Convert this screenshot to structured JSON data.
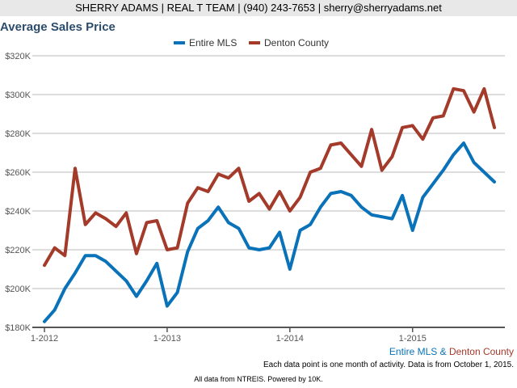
{
  "header": {
    "contact": "SHERRY ADAMS | REAL T TEAM | (940) 243-7653 | sherry@sherryadams.net"
  },
  "footer": {
    "legend_a": "Entire MLS",
    "legend_amp": " & ",
    "legend_b": "Denton County",
    "note": "Each data point is one month of activity. Data is from October 1, 2015.",
    "source": "All data from NTREIS. Powered by 10K."
  },
  "colors": {
    "mls": "#1f77b4",
    "denton": "#a33a2a"
  },
  "chart_data": {
    "type": "line",
    "title": "Average Sales Price",
    "ylim": [
      180000,
      320000
    ],
    "yticks": [
      180000,
      200000,
      220000,
      240000,
      260000,
      280000,
      300000,
      320000
    ],
    "ytick_labels": [
      "$180K",
      "$200K",
      "$220K",
      "$240K",
      "$260K",
      "$280K",
      "$300K",
      "$320K"
    ],
    "xtick_labels": [
      "1-2012",
      "1-2013",
      "1-2014",
      "1-2015"
    ],
    "xtick_index": [
      0,
      12,
      24,
      36
    ],
    "x_start": "2012-01",
    "x_end": "2015-09",
    "legend_position": "top-center",
    "grid": true,
    "series": [
      {
        "name": "Entire MLS",
        "color": "#0a72b8",
        "values": [
          183,
          189,
          200,
          208,
          217,
          217,
          214,
          209,
          204,
          196,
          204,
          213,
          191,
          198,
          219,
          231,
          235,
          242,
          234,
          231,
          221,
          220,
          221,
          229,
          210,
          230,
          233,
          242,
          249,
          250,
          248,
          242,
          238,
          237,
          236,
          248,
          230,
          247,
          254,
          261,
          269,
          275,
          265,
          260,
          255
        ]
      },
      {
        "name": "Denton County",
        "color": "#a33a2a",
        "values": [
          212,
          221,
          217,
          262,
          233,
          239,
          236,
          232,
          239,
          218,
          234,
          235,
          220,
          221,
          244,
          252,
          250,
          259,
          257,
          262,
          245,
          249,
          241,
          250,
          240,
          247,
          260,
          262,
          274,
          275,
          269,
          263,
          282,
          261,
          268,
          283,
          284,
          277,
          288,
          289,
          303,
          302,
          291,
          303,
          283
        ]
      }
    ],
    "value_unit": "thousands USD"
  }
}
